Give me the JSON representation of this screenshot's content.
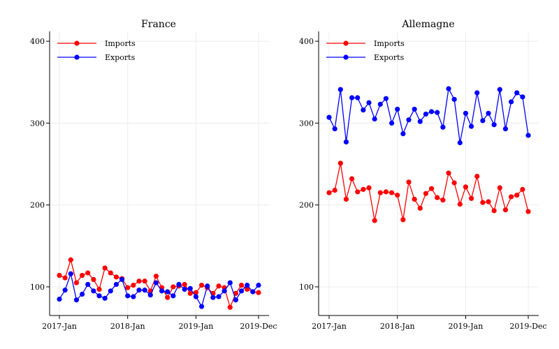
{
  "chart_data": [
    {
      "type": "line",
      "title": "France",
      "xlabel": "",
      "ylabel": "",
      "ylim": [
        65,
        412
      ],
      "yticks": [
        100,
        200,
        300,
        400
      ],
      "xticks": [
        {
          "index": 0,
          "label": "2017-Jan"
        },
        {
          "index": 12,
          "label": "2018-Jan"
        },
        {
          "index": 24,
          "label": "2019-Jan"
        },
        {
          "index": 35,
          "label": "2019-Dec"
        }
      ],
      "grid": true,
      "legend_position": "top-left",
      "series": [
        {
          "name": "Imports",
          "color": "#ff0000",
          "values": [
            114,
            111,
            133,
            105,
            114,
            117,
            109,
            97,
            123,
            117,
            112,
            110,
            99,
            102,
            107,
            107,
            95,
            113,
            99,
            87,
            100,
            101,
            103,
            92,
            93,
            102,
            99,
            92,
            101,
            99,
            75,
            92,
            102,
            97,
            94,
            93
          ]
        },
        {
          "name": "Exports",
          "color": "#0000ff",
          "values": [
            85,
            96,
            116,
            84,
            91,
            103,
            95,
            89,
            86,
            95,
            103,
            109,
            89,
            88,
            96,
            96,
            90,
            105,
            95,
            94,
            89,
            103,
            97,
            98,
            88,
            76,
            101,
            87,
            88,
            95,
            105,
            84,
            95,
            102,
            94,
            102
          ]
        }
      ]
    },
    {
      "type": "line",
      "title": "Allemagne",
      "xlabel": "",
      "ylabel": "",
      "ylim": [
        65,
        412
      ],
      "yticks": [
        100,
        200,
        300,
        400
      ],
      "xticks": [
        {
          "index": 0,
          "label": "2017-Jan"
        },
        {
          "index": 12,
          "label": "2018-Jan"
        },
        {
          "index": 24,
          "label": "2019-Jan"
        },
        {
          "index": 35,
          "label": "2019-Dec"
        }
      ],
      "grid": true,
      "legend_position": "top-left",
      "series": [
        {
          "name": "Imports",
          "color": "#ff0000",
          "values": [
            215,
            218,
            251,
            207,
            232,
            216,
            219,
            221,
            181,
            215,
            216,
            215,
            212,
            182,
            228,
            207,
            196,
            214,
            220,
            209,
            206,
            239,
            227,
            201,
            222,
            208,
            235,
            203,
            204,
            193,
            221,
            194,
            210,
            212,
            219,
            192
          ]
        },
        {
          "name": "Exports",
          "color": "#0000ff",
          "values": [
            307,
            293,
            341,
            277,
            331,
            331,
            316,
            325,
            305,
            323,
            330,
            300,
            317,
            287,
            304,
            317,
            302,
            311,
            314,
            313,
            295,
            342,
            329,
            276,
            312,
            296,
            337,
            303,
            312,
            298,
            341,
            293,
            326,
            337,
            332,
            285
          ]
        }
      ]
    }
  ]
}
